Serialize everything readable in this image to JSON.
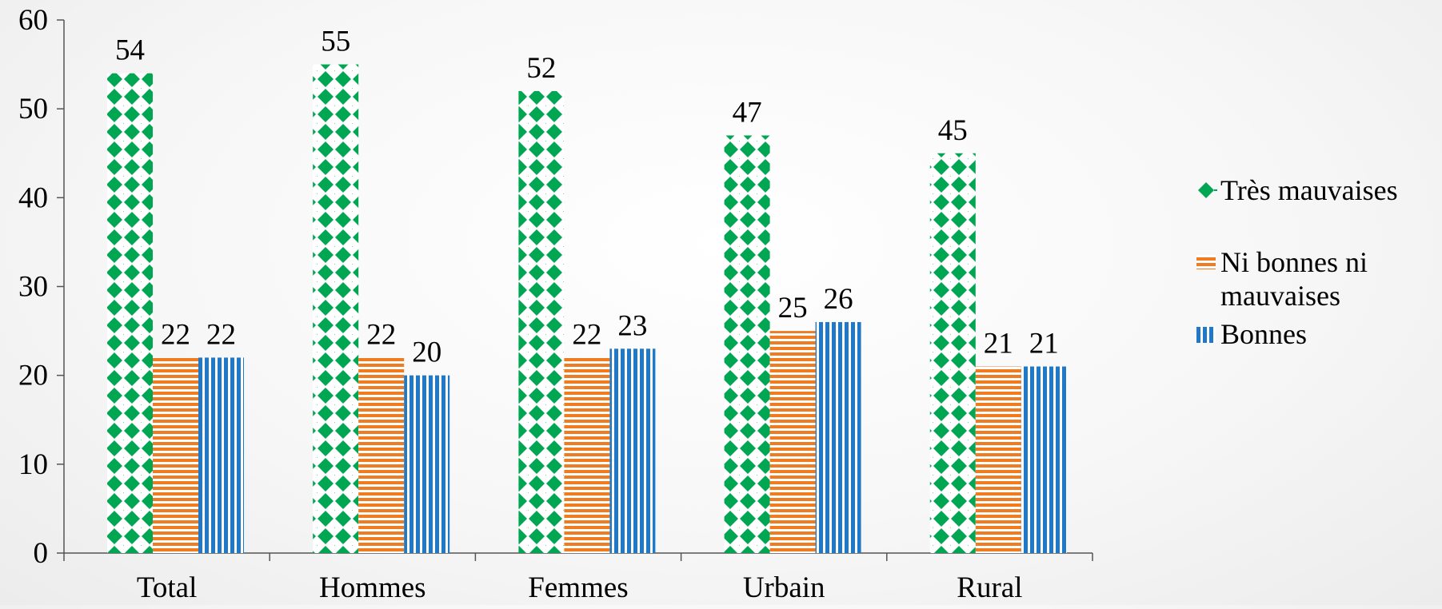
{
  "chart_data": {
    "type": "bar",
    "categories": [
      "Total",
      "Hommes",
      "Femmes",
      "Urbain",
      "Rural"
    ],
    "series": [
      {
        "name": "Très mauvaises",
        "values": [
          54,
          55,
          52,
          47,
          45
        ],
        "color": "#00a651",
        "pattern": "diamond-grid"
      },
      {
        "name": "Ni bonnes ni mauvaises",
        "legend_lines": [
          "Ni bonnes ni",
          "mauvaises"
        ],
        "values": [
          22,
          22,
          22,
          25,
          21
        ],
        "color": "#f07c22",
        "pattern": "horizontal-stripes"
      },
      {
        "name": "Bonnes",
        "values": [
          22,
          20,
          23,
          26,
          21
        ],
        "color": "#1f78c8",
        "pattern": "vertical-stripes"
      }
    ],
    "ylim": [
      0,
      60
    ],
    "yticks": [
      0,
      10,
      20,
      30,
      40,
      50,
      60
    ],
    "grid": false,
    "legend_position": "right",
    "data_labels": true
  }
}
